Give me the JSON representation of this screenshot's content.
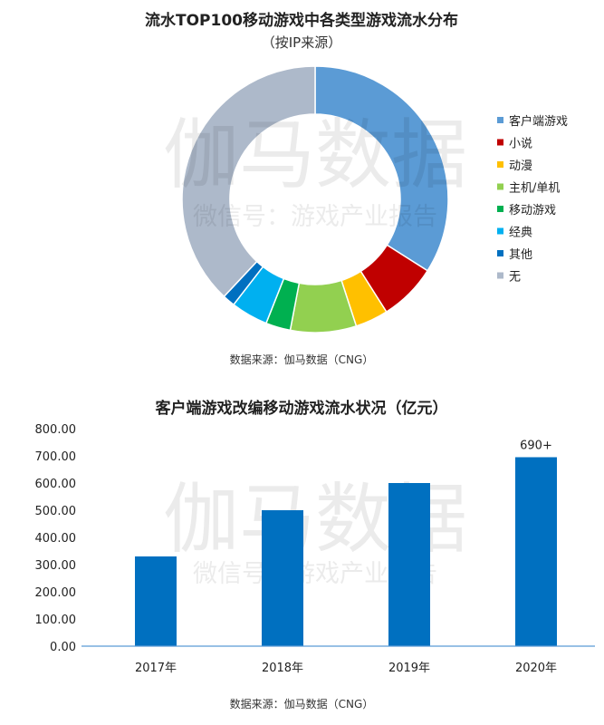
{
  "watermark": {
    "brand": "伽马数据",
    "sub": "微信号：游戏产业报告"
  },
  "chart_data": [
    {
      "type": "pie",
      "title": "流水TOP100移动游戏中各类型游戏流水分布",
      "subtitle": "（按IP来源）",
      "source": "数据来源：伽马数据（CNG）",
      "legend_position": "right",
      "slices": [
        {
          "label": "客户端游戏",
          "value": 34.0,
          "color": "#5b9bd5"
        },
        {
          "label": "小说",
          "value": 7.0,
          "color": "#c00000"
        },
        {
          "label": "动漫",
          "value": 4.0,
          "color": "#ffc000"
        },
        {
          "label": "主机/单机",
          "value": 8.0,
          "color": "#92d050"
        },
        {
          "label": "移动游戏",
          "value": 3.0,
          "color": "#00b050"
        },
        {
          "label": "经典",
          "value": 4.5,
          "color": "#00b0f0"
        },
        {
          "label": "其他",
          "value": 1.5,
          "color": "#0070c0"
        },
        {
          "label": "无",
          "value": 38.0,
          "color": "#adb9ca"
        }
      ]
    },
    {
      "type": "bar",
      "title": "客户端游戏改编移动游戏流水状况（亿元）",
      "source": "数据来源：伽马数据（CNG）",
      "categories": [
        "2017年",
        "2018年",
        "2019年",
        "2020年"
      ],
      "values": [
        330,
        500,
        600,
        695
      ],
      "data_labels": [
        "",
        "",
        "",
        "690+"
      ],
      "yticks": [
        "0.00",
        "100.00",
        "200.00",
        "300.00",
        "400.00",
        "500.00",
        "600.00",
        "700.00",
        "800.00"
      ],
      "ylim": [
        0,
        800
      ],
      "grid": false,
      "bar_color": "#0070c0"
    }
  ]
}
